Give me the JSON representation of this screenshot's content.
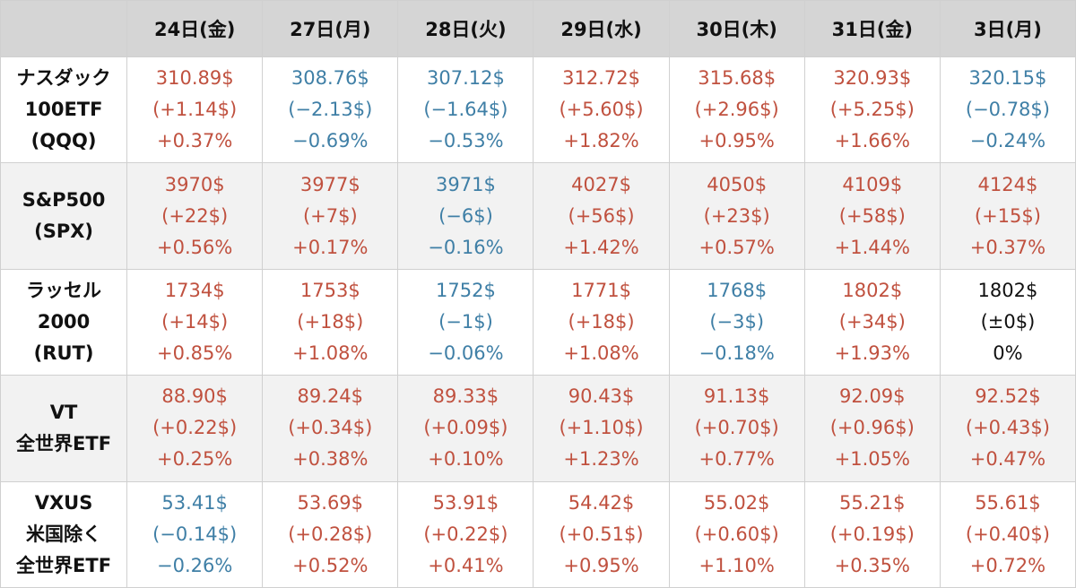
{
  "columns": [
    "24日(金)",
    "27日(月)",
    "28日(火)",
    "29日(水)",
    "30日(木)",
    "31日(金)",
    "3日(月)"
  ],
  "rows": [
    {
      "label": [
        "ナスダック",
        "100ETF",
        "(QQQ)"
      ],
      "cells": [
        {
          "price": "310.89$",
          "change": "(+1.14$)",
          "pct": "+0.37%",
          "dir": "up"
        },
        {
          "price": "308.76$",
          "change": "(−2.13$)",
          "pct": "−0.69%",
          "dir": "down"
        },
        {
          "price": "307.12$",
          "change": "(−1.64$)",
          "pct": "−0.53%",
          "dir": "down"
        },
        {
          "price": "312.72$",
          "change": "(+5.60$)",
          "pct": "+1.82%",
          "dir": "up"
        },
        {
          "price": "315.68$",
          "change": "(+2.96$)",
          "pct": "+0.95%",
          "dir": "up"
        },
        {
          "price": "320.93$",
          "change": "(+5.25$)",
          "pct": "+1.66%",
          "dir": "up"
        },
        {
          "price": "320.15$",
          "change": "(−0.78$)",
          "pct": "−0.24%",
          "dir": "down"
        }
      ]
    },
    {
      "label": [
        "S&P500",
        "(SPX)"
      ],
      "cells": [
        {
          "price": "3970$",
          "change": "(+22$)",
          "pct": "+0.56%",
          "dir": "up"
        },
        {
          "price": "3977$",
          "change": "(+7$)",
          "pct": "+0.17%",
          "dir": "up"
        },
        {
          "price": "3971$",
          "change": "(−6$)",
          "pct": "−0.16%",
          "dir": "down"
        },
        {
          "price": "4027$",
          "change": "(+56$)",
          "pct": "+1.42%",
          "dir": "up"
        },
        {
          "price": "4050$",
          "change": "(+23$)",
          "pct": "+0.57%",
          "dir": "up"
        },
        {
          "price": "4109$",
          "change": "(+58$)",
          "pct": "+1.44%",
          "dir": "up"
        },
        {
          "price": "4124$",
          "change": "(+15$)",
          "pct": "+0.37%",
          "dir": "up"
        }
      ]
    },
    {
      "label": [
        "ラッセル",
        "2000",
        "(RUT)"
      ],
      "cells": [
        {
          "price": "1734$",
          "change": "(+14$)",
          "pct": "+0.85%",
          "dir": "up"
        },
        {
          "price": "1753$",
          "change": "(+18$)",
          "pct": "+1.08%",
          "dir": "up"
        },
        {
          "price": "1752$",
          "change": "(−1$)",
          "pct": "−0.06%",
          "dir": "down"
        },
        {
          "price": "1771$",
          "change": "(+18$)",
          "pct": "+1.08%",
          "dir": "up"
        },
        {
          "price": "1768$",
          "change": "(−3$)",
          "pct": "−0.18%",
          "dir": "down"
        },
        {
          "price": "1802$",
          "change": "(+34$)",
          "pct": "+1.93%",
          "dir": "up"
        },
        {
          "price": "1802$",
          "change": "(±0$)",
          "pct": "0%",
          "dir": "flat"
        }
      ]
    },
    {
      "label": [
        "VT",
        "全世界ETF"
      ],
      "cells": [
        {
          "price": "88.90$",
          "change": "(+0.22$)",
          "pct": "+0.25%",
          "dir": "up"
        },
        {
          "price": "89.24$",
          "change": "(+0.34$)",
          "pct": "+0.38%",
          "dir": "up"
        },
        {
          "price": "89.33$",
          "change": "(+0.09$)",
          "pct": "+0.10%",
          "dir": "up"
        },
        {
          "price": "90.43$",
          "change": "(+1.10$)",
          "pct": "+1.23%",
          "dir": "up"
        },
        {
          "price": "91.13$",
          "change": "(+0.70$)",
          "pct": "+0.77%",
          "dir": "up"
        },
        {
          "price": "92.09$",
          "change": "(+0.96$)",
          "pct": "+1.05%",
          "dir": "up"
        },
        {
          "price": "92.52$",
          "change": "(+0.43$)",
          "pct": "+0.47%",
          "dir": "up"
        }
      ]
    },
    {
      "label": [
        "VXUS",
        "米国除く",
        "全世界ETF"
      ],
      "cells": [
        {
          "price": "53.41$",
          "change": "(−0.14$)",
          "pct": "−0.26%",
          "dir": "down"
        },
        {
          "price": "53.69$",
          "change": "(+0.28$)",
          "pct": "+0.52%",
          "dir": "up"
        },
        {
          "price": "53.91$",
          "change": "(+0.22$)",
          "pct": "+0.41%",
          "dir": "up"
        },
        {
          "price": "54.42$",
          "change": "(+0.51$)",
          "pct": "+0.95%",
          "dir": "up"
        },
        {
          "price": "55.02$",
          "change": "(+0.60$)",
          "pct": "+1.10%",
          "dir": "up"
        },
        {
          "price": "55.21$",
          "change": "(+0.19$)",
          "pct": "+0.35%",
          "dir": "up"
        },
        {
          "price": "55.61$",
          "change": "(+0.40$)",
          "pct": "+0.72%",
          "dir": "up"
        }
      ]
    }
  ],
  "colors": {
    "up": "#c0513f",
    "down": "#3f7fa6",
    "flat": "#111111",
    "header_bg": "#d5d5d5",
    "shade_bg": "#f2f2f2"
  }
}
